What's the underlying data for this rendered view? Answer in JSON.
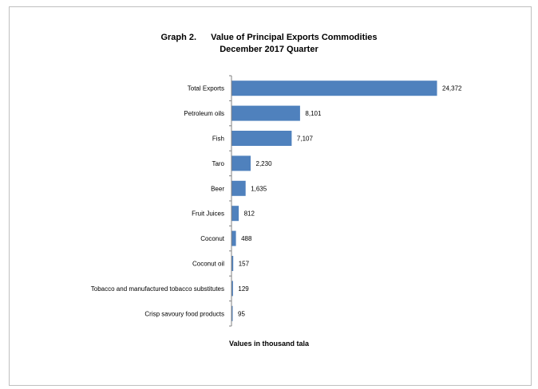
{
  "page": {
    "title_prefix": "Graph 2.",
    "title_main": "Value of Principal Exports Commodities",
    "title_sub": "December 2017 Quarter"
  },
  "chart_data": {
    "type": "bar",
    "orientation": "horizontal",
    "title": "Graph 2. Value of Principal Exports Commodities December 2017 Quarter",
    "xlabel": "Values in thousand tala",
    "ylabel": "",
    "categories": [
      "Total Exports",
      "Petroleum oils",
      "Fish",
      "Taro",
      "Beer",
      "Fruit Juices",
      "Coconut",
      "Coconut oil",
      "Tobacco and manufactured tobacco substitutes",
      "Crisp savoury food products"
    ],
    "values": [
      24372,
      8101,
      7107,
      2230,
      1635,
      812,
      488,
      157,
      129,
      95
    ],
    "data_labels": [
      "24,372",
      "8,101",
      "7,107",
      "2,230",
      "1,635",
      "812",
      "488",
      "157",
      "129",
      "95"
    ],
    "xlim": [
      0,
      24372
    ],
    "grid": false,
    "legend": "none",
    "bar_color": "#4f81bd"
  }
}
